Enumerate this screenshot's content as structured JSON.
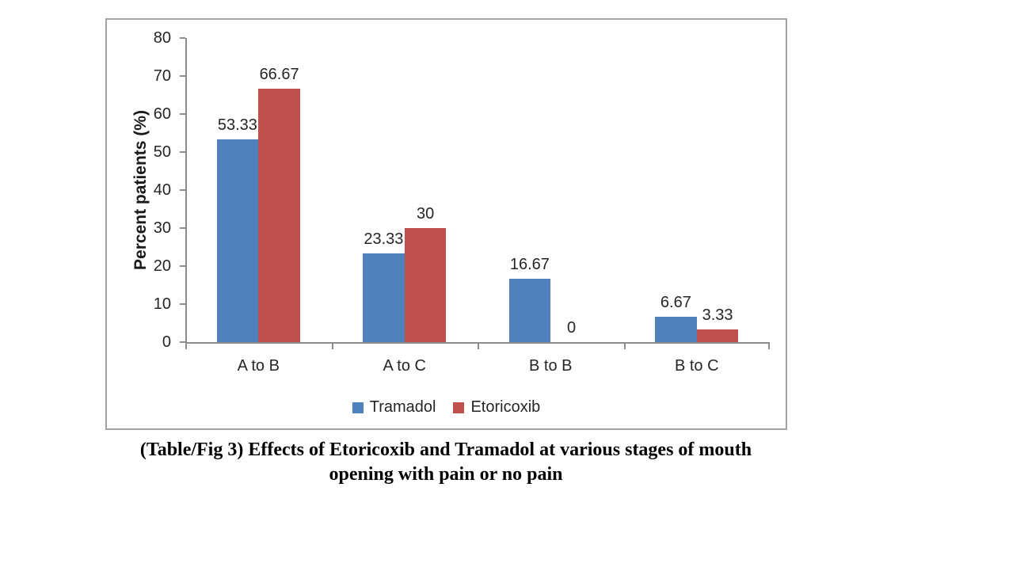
{
  "figure": {
    "caption_line1": "(Table/Fig 3) Effects of Etoricoxib and Tramadol at various stages of mouth",
    "caption_line2": "opening with pain or no pain"
  },
  "chart_data": {
    "type": "bar",
    "title": "",
    "xlabel": "",
    "ylabel": "Percent patients (%)",
    "categories": [
      "A to B",
      "A to C",
      "B to B",
      "B to C"
    ],
    "series": [
      {
        "name": "Tramadol",
        "color": "#4f81bd",
        "values": [
          53.33,
          23.33,
          16.67,
          6.67
        ],
        "data_labels": [
          "53.33",
          "23.33",
          "16.67",
          "6.67"
        ]
      },
      {
        "name": "Etoricoxib",
        "color": "#c0504d",
        "values": [
          66.67,
          30,
          0,
          3.33
        ],
        "data_labels": [
          "66.67",
          "30",
          "0",
          "3.33"
        ]
      }
    ],
    "ylim": [
      0,
      80
    ],
    "ytick_step": 10,
    "ytick_labels": [
      "0",
      "10",
      "20",
      "30",
      "40",
      "50",
      "60",
      "70",
      "80"
    ],
    "grid": false,
    "legend_position": "bottom-center",
    "axis_color": "#8c8c8c",
    "text_color": "#262626"
  }
}
